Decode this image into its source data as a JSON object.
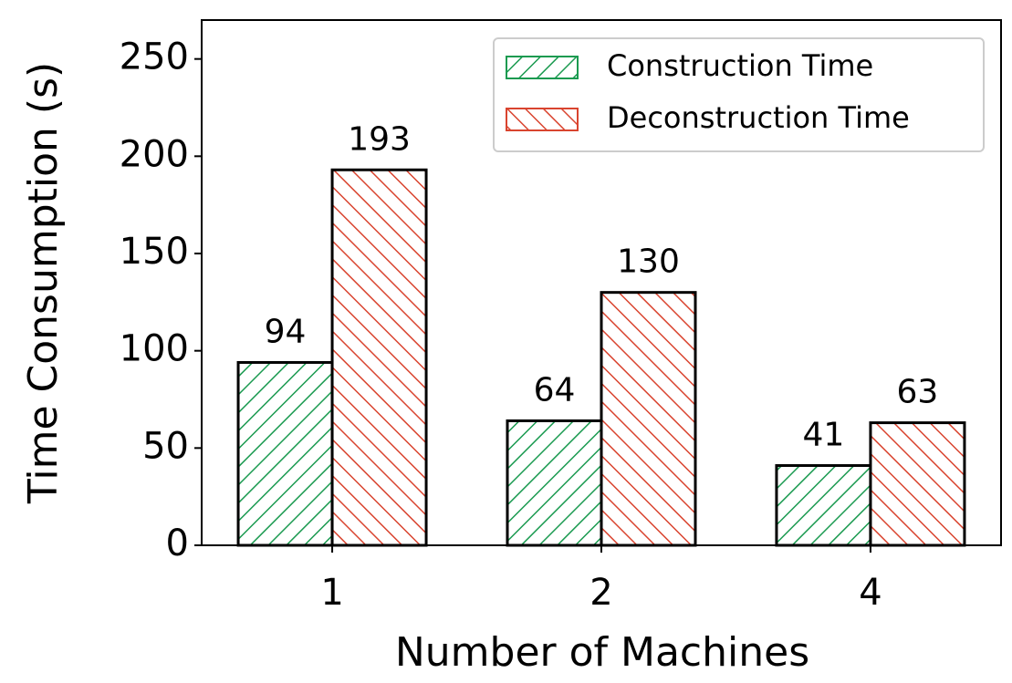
{
  "chart_data": {
    "type": "bar",
    "x_label": "Number of Machines",
    "y_label": "Time Consumption (s)",
    "categories": [
      "1",
      "2",
      "4"
    ],
    "series": [
      {
        "name": "Construction Time",
        "color": "#1a9a50",
        "hatch": "/",
        "values": [
          94,
          64,
          41
        ]
      },
      {
        "name": "Deconstruction Time",
        "color": "#d9442f",
        "hatch": "\\",
        "values": [
          193,
          130,
          63
        ]
      }
    ],
    "ylim": [
      0,
      270
    ],
    "yticks": [
      0,
      50,
      100,
      150,
      200,
      250
    ],
    "legend": "upper right",
    "grid": false
  }
}
